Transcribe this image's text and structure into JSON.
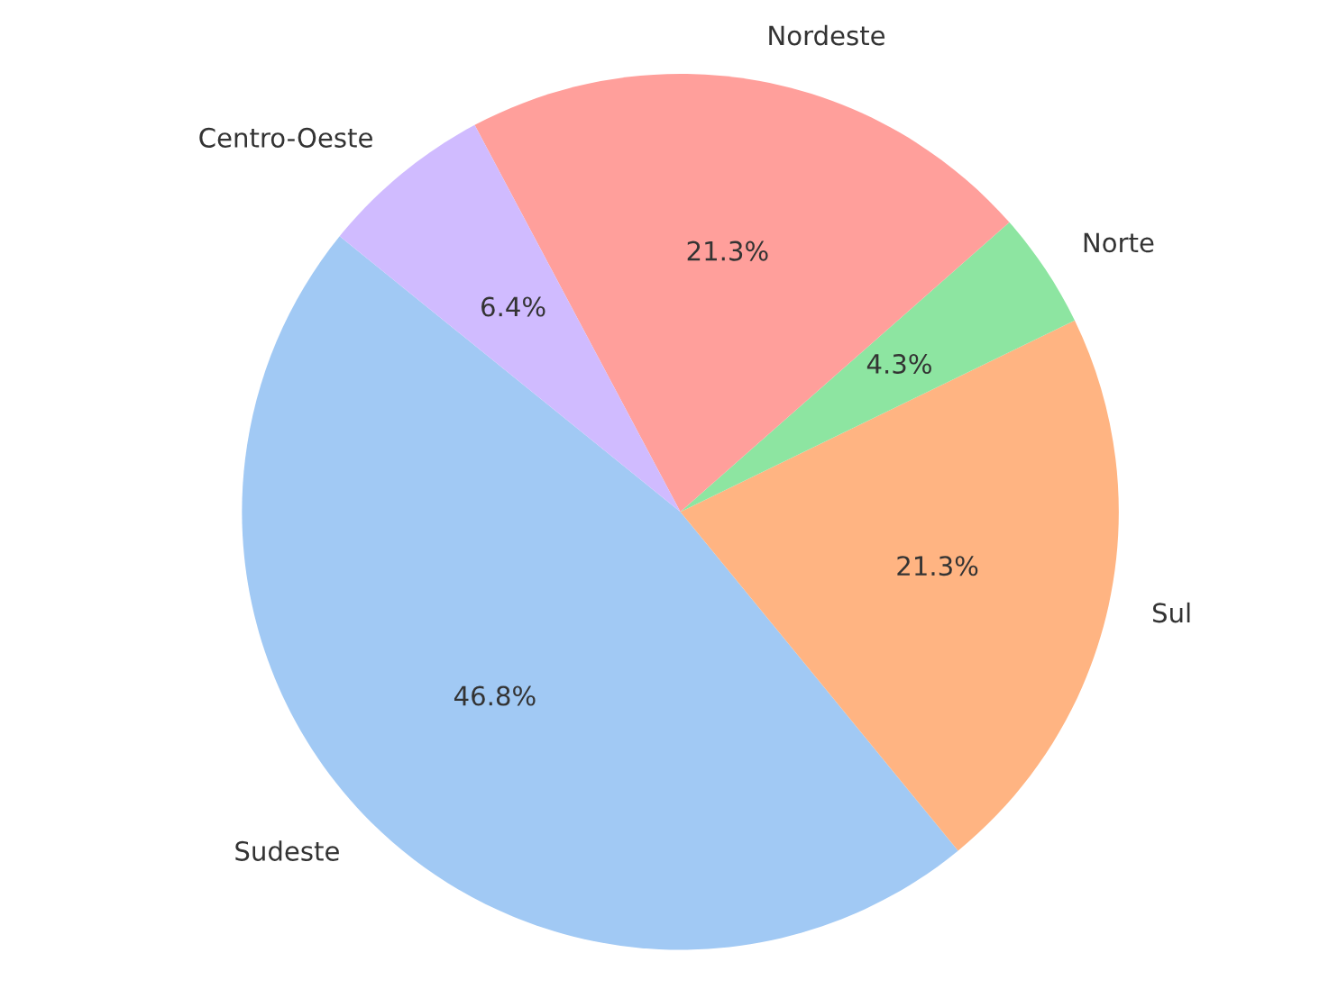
{
  "chart_data": {
    "type": "pie",
    "categories": [
      "Sudeste",
      "Sul",
      "Norte",
      "Nordeste",
      "Centro-Oeste"
    ],
    "values": [
      46.8,
      21.3,
      4.3,
      21.3,
      6.4
    ],
    "value_labels": [
      "46.8%",
      "21.3%",
      "4.3%",
      "21.3%",
      "6.4%"
    ],
    "colors": [
      "#a1c9f4",
      "#ffb482",
      "#8de5a1",
      "#ff9f9b",
      "#d0bbff"
    ]
  }
}
